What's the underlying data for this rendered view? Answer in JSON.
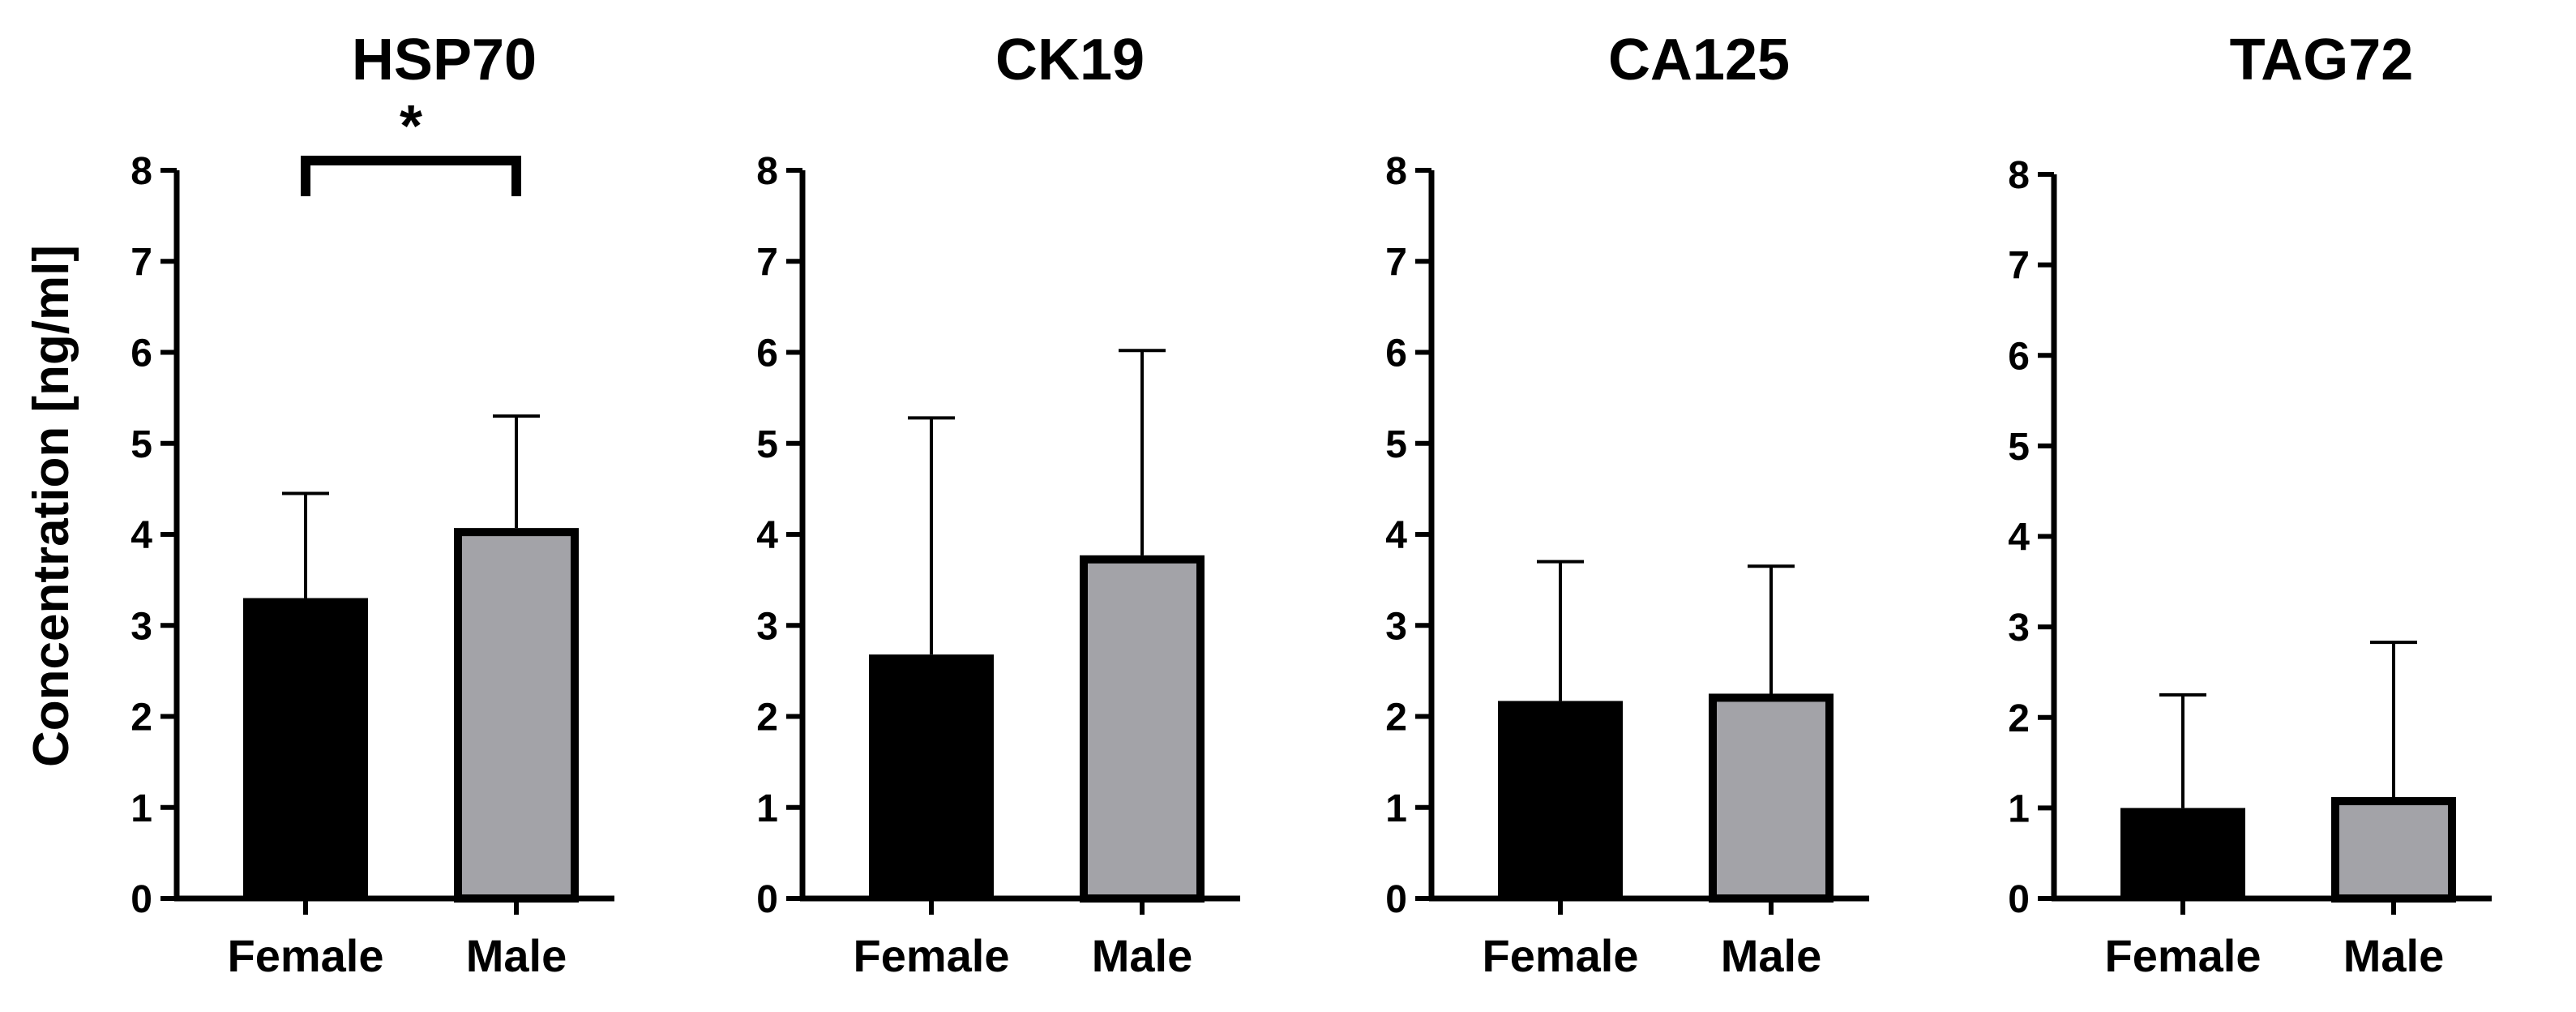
{
  "chart_data": {
    "type": "bar",
    "ylabel": "Concentration [ng/ml]",
    "ylim": [
      0,
      8
    ],
    "yticks": [
      "0",
      "1",
      "2",
      "3",
      "4",
      "5",
      "6",
      "7",
      "8"
    ],
    "categories": [
      "Female",
      "Male"
    ],
    "colors": {
      "Female": "#000000",
      "Male": "#a3a3a8",
      "outline": "#000000"
    },
    "panels": [
      {
        "title": "HSP70",
        "values": [
          3.3,
          4.07
        ],
        "error_upper": [
          4.45,
          5.3
        ],
        "significance": {
          "label": "*",
          "between": [
            0,
            1
          ]
        }
      },
      {
        "title": "CK19",
        "values": [
          2.68,
          3.77
        ],
        "error_upper": [
          5.28,
          6.02
        ],
        "significance": null
      },
      {
        "title": "CA125",
        "values": [
          2.17,
          2.25
        ],
        "error_upper": [
          3.7,
          3.65
        ],
        "significance": null
      },
      {
        "title": "TAG72",
        "values": [
          1.0,
          1.12
        ],
        "error_upper": [
          2.25,
          2.83
        ],
        "significance": null
      }
    ]
  }
}
